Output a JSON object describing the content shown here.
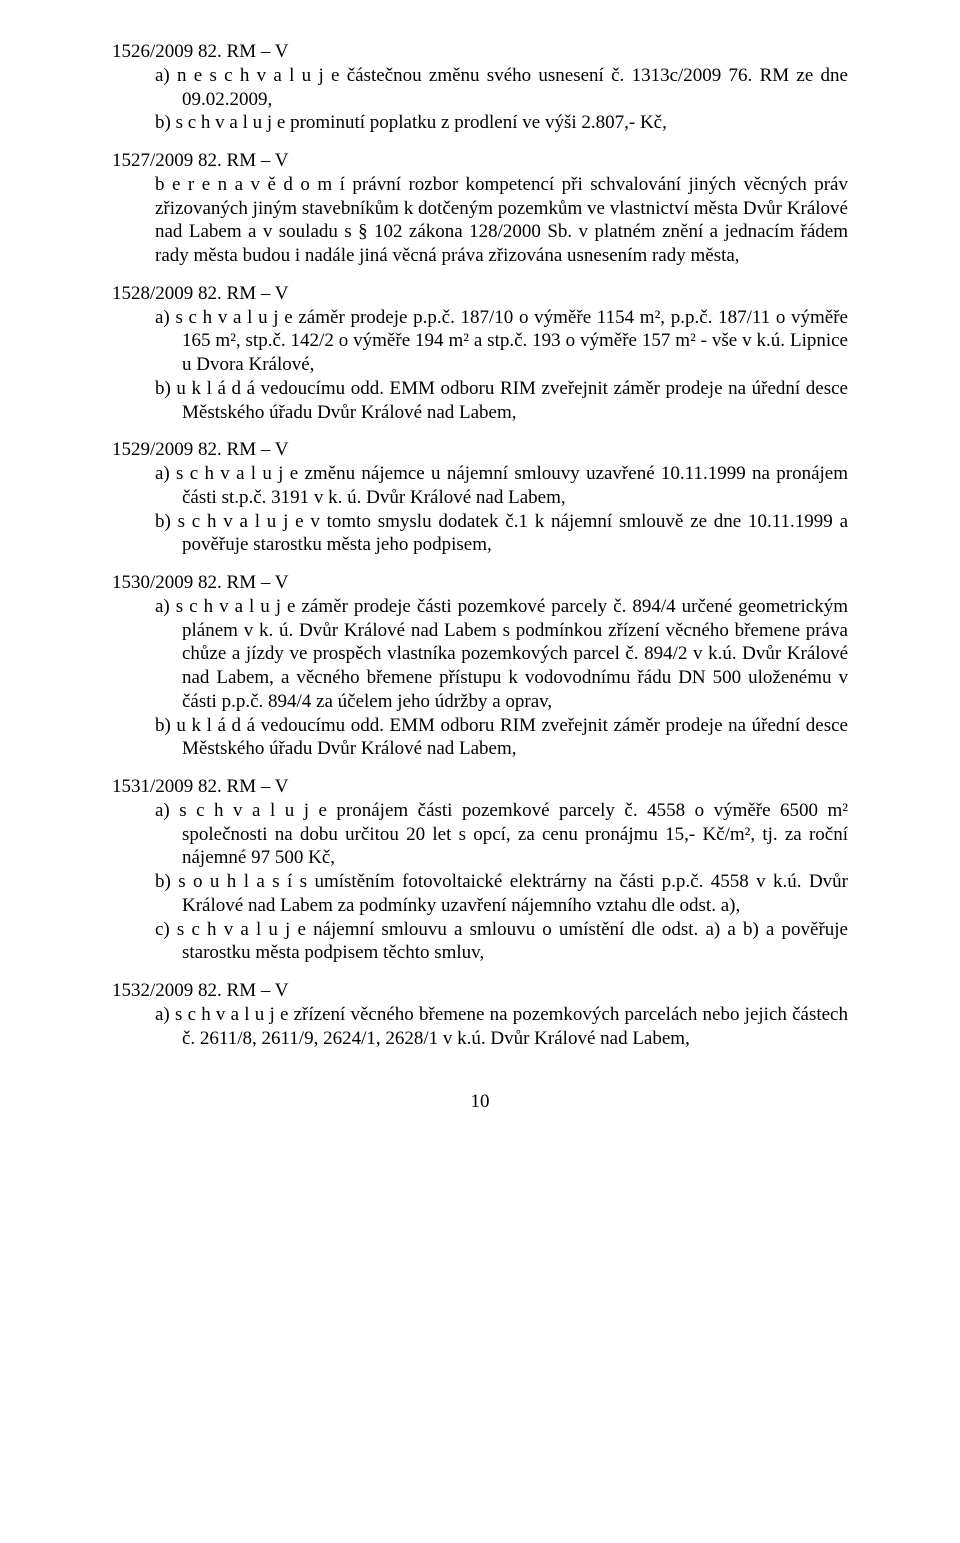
{
  "page_number": "10",
  "sections": {
    "s1526": {
      "head": "1526/2009  82. RM – V",
      "a": "a)  n e s c h v a l u j e  částečnou změnu svého usnesení č. 1313c/2009  76. RM ze dne 09.02.2009,",
      "b": "b)  s c h v a l u j e  prominutí poplatku z prodlení ve výši 2.807,- Kč,"
    },
    "s1527": {
      "head": "1527/2009  82. RM – V",
      "body": "b e r e   n a   v ě d o m í   právní rozbor kompetencí při schvalování jiných věcných práv zřizovaných jiným stavebníkům k dotčeným pozemkům ve vlastnictví města Dvůr Králové nad Labem a v souladu s § 102 zákona 128/2000 Sb. v platném znění a jednacím řádem rady města budou i nadále jiná věcná práva zřizována usnesením rady města,"
    },
    "s1528": {
      "head": "1528/2009 82. RM – V",
      "a": "a)  s c h v a l u j e   záměr prodeje p.p.č.  187/10 o výměře 1154 m², p.p.č. 187/11 o výměře 165 m², stp.č. 142/2 o výměře 194 m² a stp.č. 193 o výměře 157 m²  - vše v k.ú. Lipnice u Dvora Králové,",
      "b": "b)  u k l á d á  vedoucímu odd. EMM odboru RIM zveřejnit záměr prodeje na úřední desce Městského úřadu Dvůr Králové nad Labem,"
    },
    "s1529": {
      "head": "1529/2009 82. RM – V",
      "a": "a)  s c h v a l u j e  změnu nájemce u nájemní smlouvy uzavřené 10.11.1999 na pronájem části st.p.č. 3191 v k. ú. Dvůr Králové nad Labem,",
      "b": "b)  s c h v a l u j e  v tomto smyslu dodatek č.1 k nájemní smlouvě ze dne 10.11.1999 a pověřuje starostku města jeho podpisem,"
    },
    "s1530": {
      "head": "1530/2009 82. RM – V",
      "a": "a)  s c h v a l u j e  záměr prodeje části pozemkové parcely č. 894/4 určené geometrickým plánem v k. ú. Dvůr Králové nad Labem s podmínkou zřízení věcného břemene práva chůze a jízdy ve prospěch vlastníka pozemkových parcel č. 894/2 v k.ú. Dvůr Králové nad Labem, a věcného břemene přístupu k vodovodnímu řádu DN 500 uloženému v části p.p.č. 894/4 za účelem jeho údržby a oprav,",
      "b": "b)  u k l á d á  vedoucímu odd. EMM odboru RIM zveřejnit záměr prodeje na úřední desce Městského úřadu Dvůr Králové nad Labem,"
    },
    "s1531": {
      "head": "1531/2009 82. RM – V",
      "a": "a)  s c h v a l u j e  pronájem části pozemkové parcely č. 4558 o výměře 6500 m² společnosti  na dobu určitou 20 let s opcí, za cenu pronájmu 15,- Kč/m², tj. za roční nájemné 97 500 Kč,",
      "b": "b)  s o u h l a s í   s umístěním fotovoltaické elektrárny na části p.p.č. 4558 v k.ú. Dvůr Králové nad Labem za podmínky uzavření nájemního vztahu dle odst. a),",
      "c": "c)  s c h v a l u j e  nájemní smlouvu a smlouvu o umístění dle odst. a) a b) a pověřuje starostku města podpisem těchto smluv,"
    },
    "s1532": {
      "head": "1532/2009 82. RM – V",
      "a": "a)  s c h v a l u j e  zřízení věcného břemene na pozemkových parcelách nebo jejich částech č. 2611/8, 2611/9, 2624/1, 2628/1 v k.ú. Dvůr Králové nad Labem,"
    }
  }
}
